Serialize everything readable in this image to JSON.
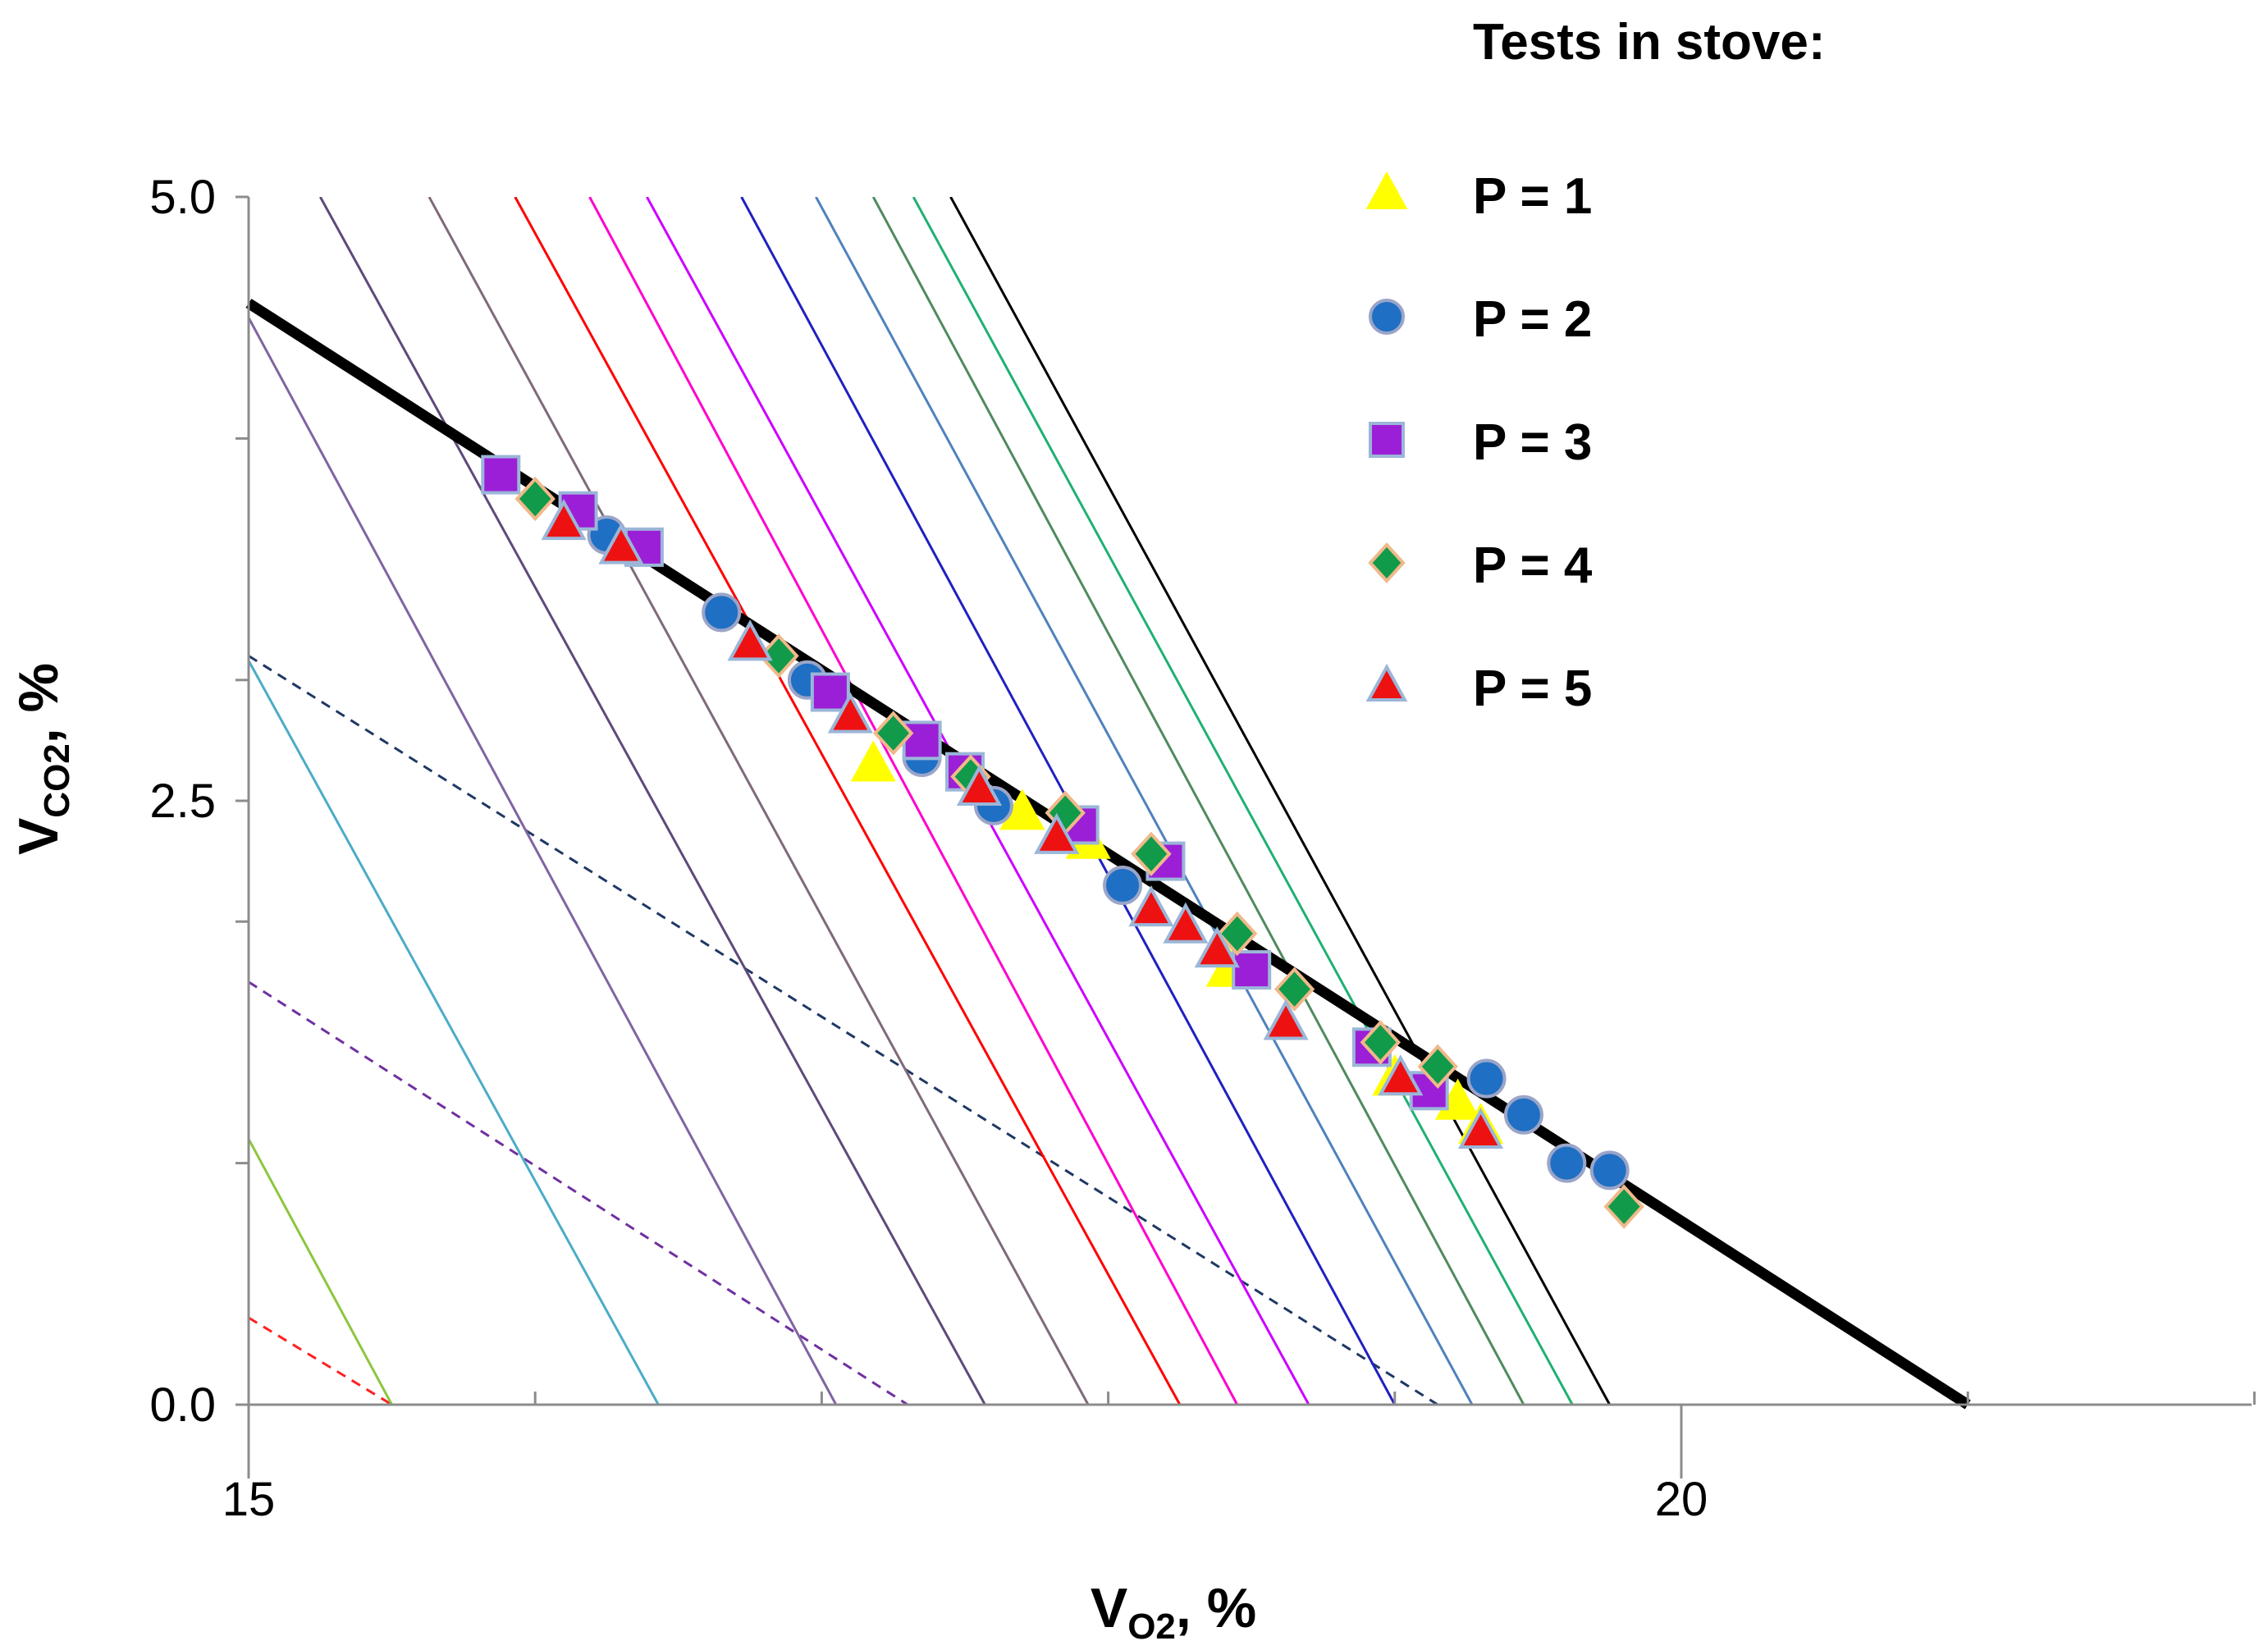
{
  "chart_data": {
    "type": "scatter",
    "title": "",
    "xlabel": {
      "main": "V",
      "sub": "O2",
      "unit": ", %"
    },
    "ylabel": {
      "main": "V",
      "sub": "CO2",
      "unit": ", %"
    },
    "xlim": [
      15,
      22
    ],
    "ylim": [
      0,
      5
    ],
    "x_major_ticks": [
      15,
      20
    ],
    "x_tick_labels": [
      "15",
      "20"
    ],
    "x_minor_ticks": [
      16,
      17,
      18,
      19,
      21,
      22
    ],
    "y_major_ticks": [
      0,
      2.5,
      5
    ],
    "y_tick_labels": [
      "0.0",
      "2.5",
      "5.0"
    ],
    "y_minor_ticks": [
      1,
      2,
      3,
      4
    ],
    "grid": false,
    "legend": {
      "title": "Tests in stove:",
      "placement": "top-right, outside plot",
      "entries": [
        {
          "label": "P = 1",
          "marker": "triangle",
          "color": "#ffff00",
          "edge": "#ffff00"
        },
        {
          "label": "P = 2",
          "marker": "circle",
          "color": "#1f6fc4",
          "edge": "#9aa5c8"
        },
        {
          "label": "P = 3",
          "marker": "square",
          "color": "#9b1fd6",
          "edge": "#9bb6d8"
        },
        {
          "label": "P = 4",
          "marker": "diamond",
          "color": "#119a4a",
          "edge": "#f0b98a"
        },
        {
          "label": "P = 5",
          "marker": "triangle",
          "color": "#ee1111",
          "edge": "#9bb6d8"
        }
      ]
    },
    "reference_line": {
      "color": "#000000",
      "points": [
        [
          15,
          4.56
        ],
        [
          21,
          0
        ]
      ]
    },
    "family_lines": [
      {
        "color": "#ff2020",
        "dashed": true,
        "points": [
          [
            15,
            0.36
          ],
          [
            15.5,
            0
          ]
        ]
      },
      {
        "color": "#8dc63f",
        "dashed": false,
        "points": [
          [
            15,
            1.1
          ],
          [
            15.5,
            0
          ]
        ]
      },
      {
        "color": "#7030a0",
        "dashed": true,
        "points": [
          [
            15,
            1.75
          ],
          [
            17.3,
            0
          ]
        ]
      },
      {
        "color": "#1f3864",
        "dashed": true,
        "points": [
          [
            15,
            3.1
          ],
          [
            19.15,
            0
          ]
        ]
      },
      {
        "color": "#4bacc6",
        "dashed": false,
        "points": [
          [
            15,
            3.08
          ],
          [
            16.43,
            0
          ]
        ]
      },
      {
        "color": "#8064a2",
        "dashed": false,
        "points": [
          [
            15,
            4.5
          ],
          [
            17.05,
            0
          ]
        ]
      },
      {
        "color": "#5f497a",
        "dashed": false,
        "points": [
          [
            15.25,
            5
          ],
          [
            17.57,
            0
          ]
        ]
      },
      {
        "color": "#7f6a7a",
        "dashed": false,
        "points": [
          [
            15.63,
            5
          ],
          [
            17.93,
            0
          ]
        ]
      },
      {
        "color": "#ff0000",
        "dashed": false,
        "points": [
          [
            15.93,
            5
          ],
          [
            18.25,
            0
          ]
        ]
      },
      {
        "color": "#ff00cc",
        "dashed": false,
        "points": [
          [
            16.19,
            5
          ],
          [
            18.45,
            0
          ]
        ]
      },
      {
        "color": "#cc00ff",
        "dashed": false,
        "points": [
          [
            16.39,
            5
          ],
          [
            18.7,
            0
          ]
        ]
      },
      {
        "color": "#2020c0",
        "dashed": false,
        "points": [
          [
            16.72,
            5
          ],
          [
            19.0,
            0
          ]
        ]
      },
      {
        "color": "#4f81bd",
        "dashed": false,
        "points": [
          [
            16.98,
            5
          ],
          [
            19.27,
            0
          ]
        ]
      },
      {
        "color": "#4f8a5f",
        "dashed": false,
        "points": [
          [
            17.18,
            5
          ],
          [
            19.45,
            0
          ]
        ]
      },
      {
        "color": "#20b070",
        "dashed": false,
        "points": [
          [
            17.32,
            5
          ],
          [
            19.62,
            0
          ]
        ]
      },
      {
        "color": "#000000",
        "dashed": false,
        "points": [
          [
            17.45,
            5
          ],
          [
            19.75,
            0
          ]
        ]
      }
    ],
    "series": [
      {
        "name": "P = 1",
        "marker": "triangle",
        "color": "#ffff00",
        "edge": "#ffff00",
        "x": [
          17.18,
          17.7,
          17.93,
          18.42,
          19.0,
          19.22,
          19.3
        ],
        "y": [
          2.65,
          2.45,
          2.33,
          1.8,
          1.35,
          1.25,
          1.15
        ]
      },
      {
        "name": "P = 2",
        "marker": "circle",
        "color": "#1f6fc4",
        "edge": "#9aa5c8",
        "x": [
          16.25,
          16.65,
          16.95,
          17.35,
          17.6,
          18.05,
          19.32,
          19.45,
          19.6,
          19.75
        ],
        "y": [
          3.6,
          3.28,
          3.0,
          2.68,
          2.48,
          2.15,
          1.35,
          1.2,
          1.0,
          0.97
        ]
      },
      {
        "name": "P = 3",
        "marker": "square",
        "color": "#9b1fd6",
        "edge": "#9bb6d8",
        "x": [
          15.88,
          16.15,
          16.38,
          17.03,
          17.35,
          17.5,
          17.9,
          18.2,
          18.5,
          18.92,
          19.12
        ],
        "y": [
          3.85,
          3.7,
          3.55,
          2.95,
          2.75,
          2.62,
          2.4,
          2.25,
          1.8,
          1.48,
          1.3
        ]
      },
      {
        "name": "P = 4",
        "marker": "diamond",
        "color": "#119a4a",
        "edge": "#f0b98a",
        "x": [
          16.0,
          16.85,
          17.25,
          17.52,
          17.85,
          18.15,
          18.45,
          18.65,
          18.95,
          19.15,
          19.8
        ],
        "y": [
          3.75,
          3.1,
          2.78,
          2.6,
          2.45,
          2.28,
          1.95,
          1.72,
          1.5,
          1.4,
          0.82
        ]
      },
      {
        "name": "P = 5",
        "marker": "triangle",
        "color": "#ee1111",
        "edge": "#9bb6d8",
        "x": [
          16.1,
          16.3,
          16.75,
          17.1,
          17.55,
          17.82,
          18.15,
          18.27,
          18.38,
          18.62,
          19.02,
          19.3
        ],
        "y": [
          3.65,
          3.55,
          3.15,
          2.85,
          2.55,
          2.35,
          2.05,
          1.98,
          1.88,
          1.58,
          1.35,
          1.13
        ]
      }
    ]
  }
}
